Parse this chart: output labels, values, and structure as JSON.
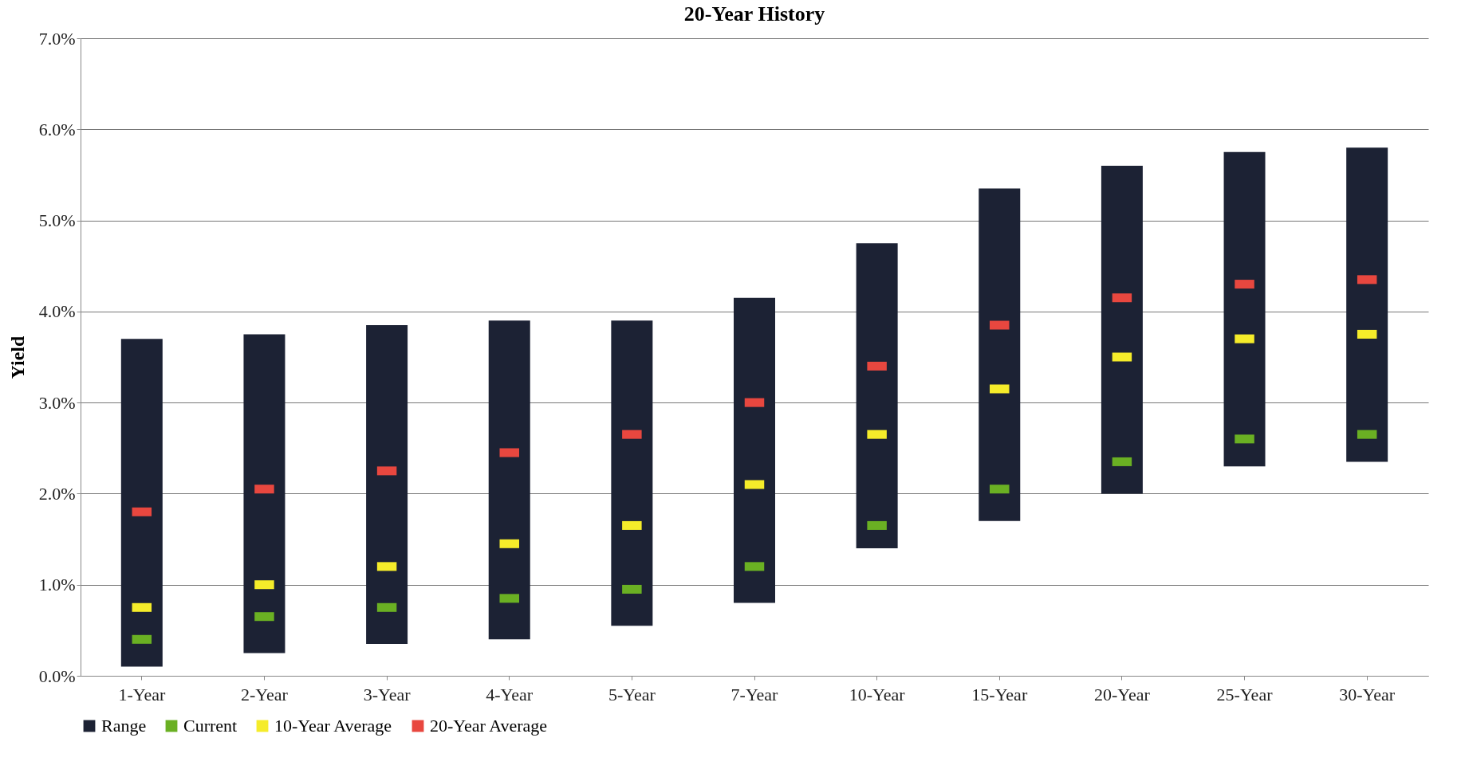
{
  "chart_data": {
    "type": "bar",
    "title": "20-Year History",
    "ylabel": "Yield",
    "categories": [
      "1-Year",
      "2-Year",
      "3-Year",
      "4-Year",
      "5-Year",
      "7-Year",
      "10-Year",
      "15-Year",
      "20-Year",
      "25-Year",
      "30-Year"
    ],
    "series": [
      {
        "name": "Range",
        "color": "#1c2234",
        "base": [
          0.1,
          0.25,
          0.35,
          0.4,
          0.55,
          0.8,
          1.4,
          1.7,
          2.0,
          2.3,
          2.35
        ],
        "values": [
          3.6,
          3.5,
          3.5,
          3.5,
          3.35,
          3.35,
          3.35,
          3.65,
          3.6,
          3.45,
          3.45
        ]
      },
      {
        "name": "Current",
        "type": "scatter",
        "color": "#6ab023",
        "values": [
          0.4,
          0.65,
          0.75,
          0.85,
          0.95,
          1.2,
          1.65,
          2.05,
          2.35,
          2.6,
          2.65
        ]
      },
      {
        "name": "10-Year Average",
        "type": "scatter",
        "color": "#f5ec2a",
        "values": [
          0.75,
          1.0,
          1.2,
          1.45,
          1.65,
          2.1,
          2.65,
          3.15,
          3.5,
          3.7,
          3.75
        ]
      },
      {
        "name": "20-Year Average",
        "type": "scatter",
        "color": "#e8473f",
        "values": [
          1.8,
          2.05,
          2.25,
          2.45,
          2.65,
          3.0,
          3.4,
          3.85,
          4.15,
          4.3,
          4.35
        ]
      }
    ],
    "ylim": [
      0,
      7
    ],
    "yticks": [
      {
        "value": 0,
        "label": "0.0%"
      },
      {
        "value": 1,
        "label": "1.0%"
      },
      {
        "value": 2,
        "label": "2.0%"
      },
      {
        "value": 3,
        "label": "3.0%"
      },
      {
        "value": 4,
        "label": "4.0%"
      },
      {
        "value": 5,
        "label": "5.0%"
      },
      {
        "value": 6,
        "label": "6.0%"
      },
      {
        "value": 7,
        "label": "7.0%"
      }
    ],
    "grid": "y",
    "legend": "bottom"
  }
}
